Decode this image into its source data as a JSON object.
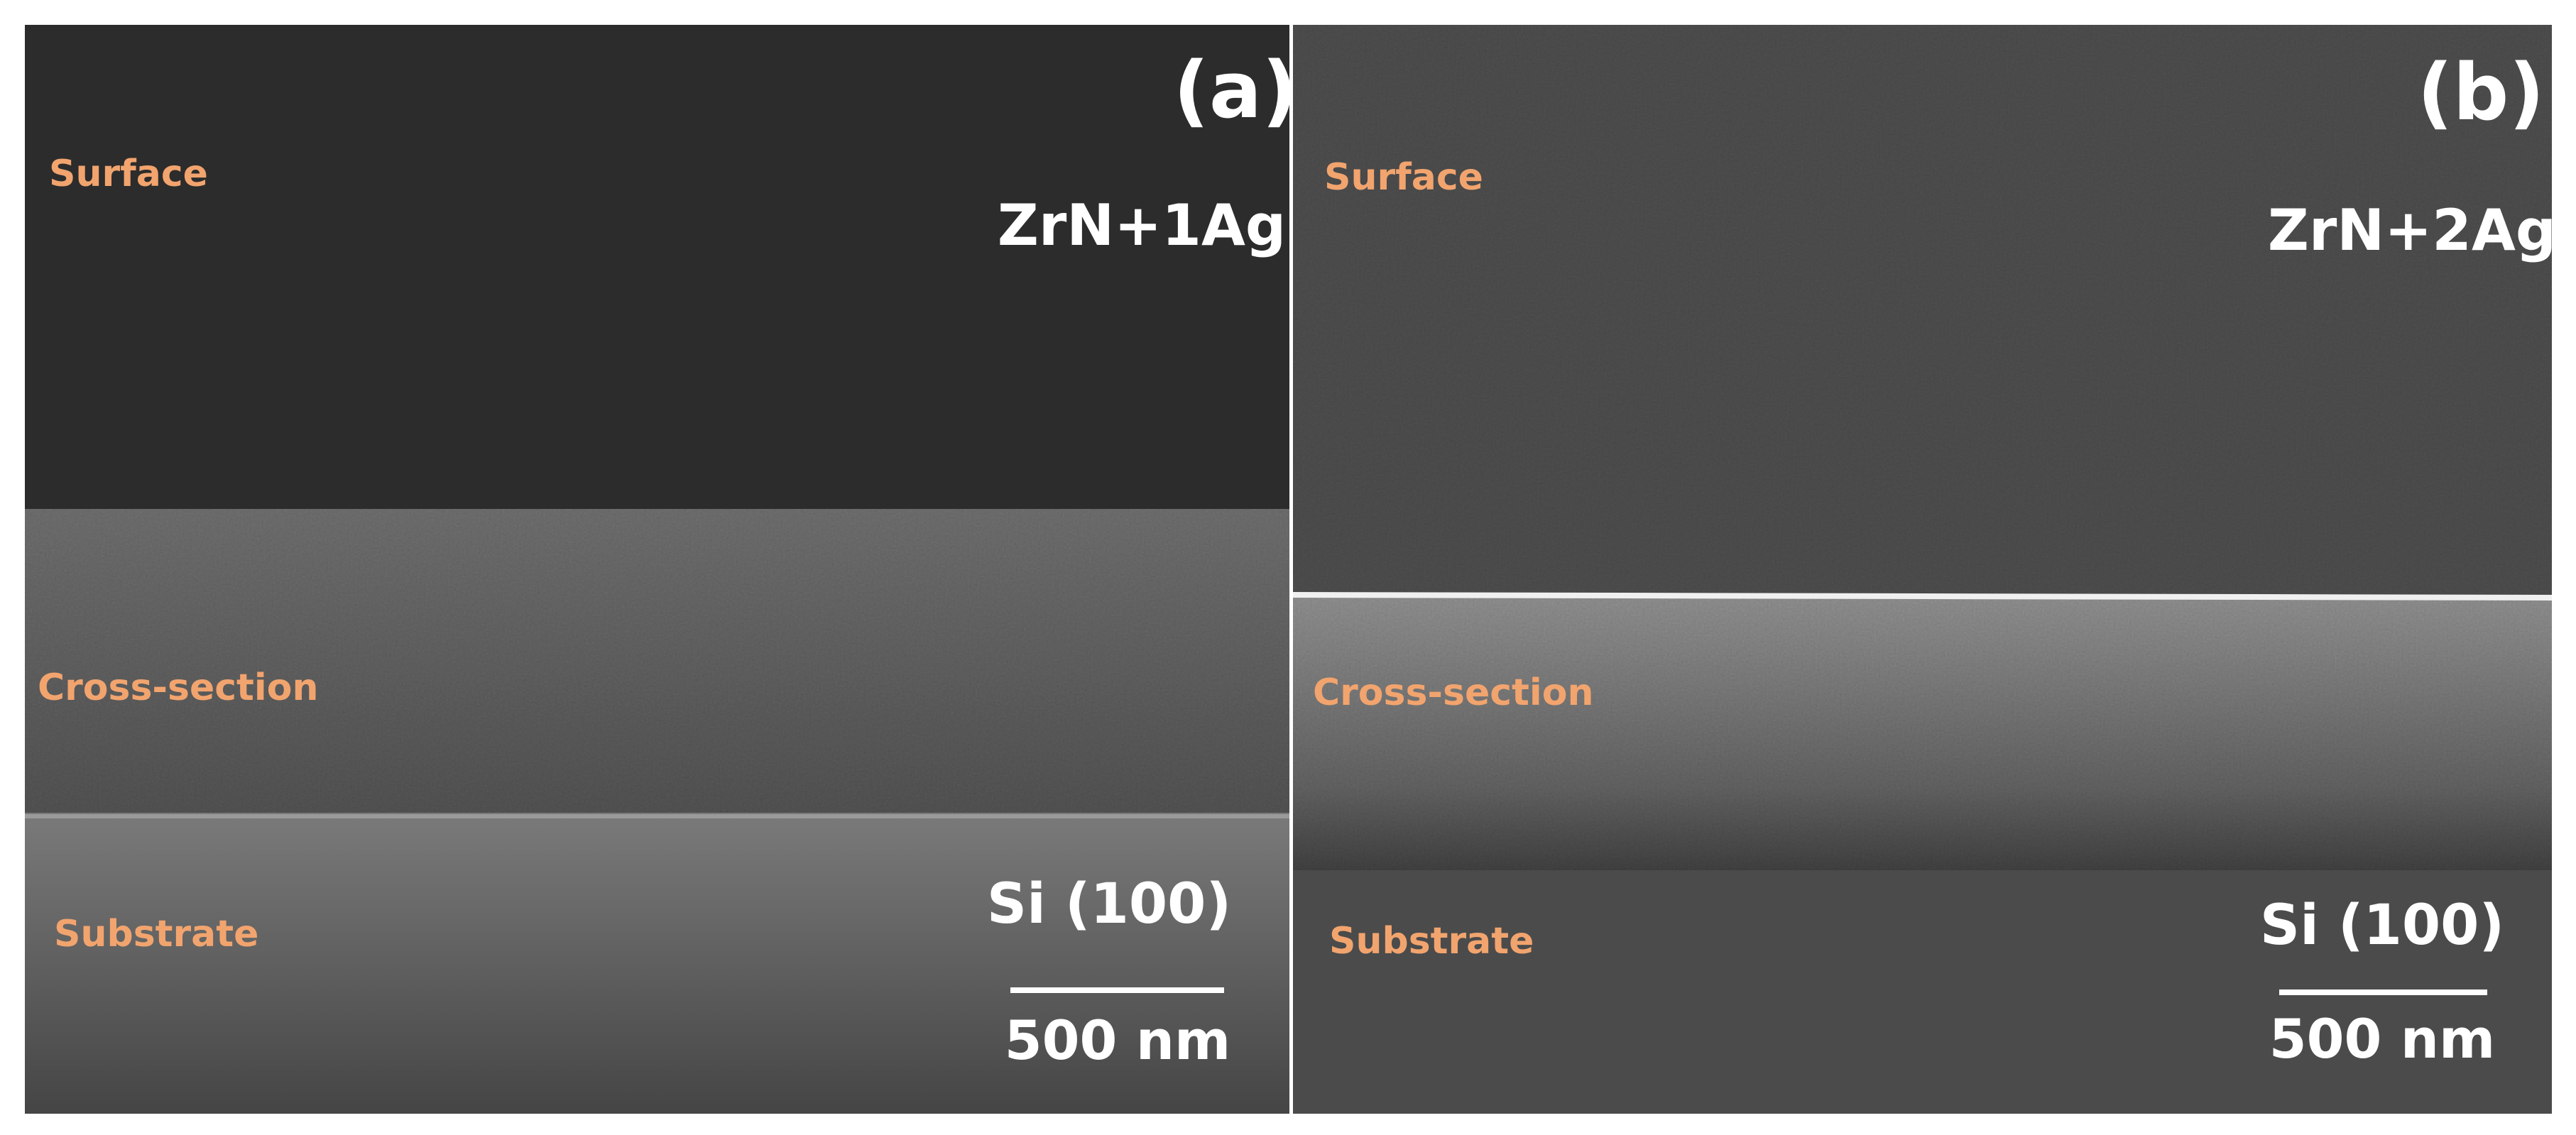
{
  "panels": [
    {
      "label": "(a)",
      "sample": "ZrN+1Ag",
      "regions": [
        "Surface",
        "Cross-section",
        "Substrate"
      ],
      "substrate": "Si (100)",
      "scale_bar": "500 nm"
    },
    {
      "label": "(b)",
      "sample": "ZrN+2Ag",
      "regions": [
        "Surface",
        "Cross-section",
        "Substrate"
      ],
      "substrate": "Si (100)",
      "scale_bar": "500 nm"
    }
  ]
}
